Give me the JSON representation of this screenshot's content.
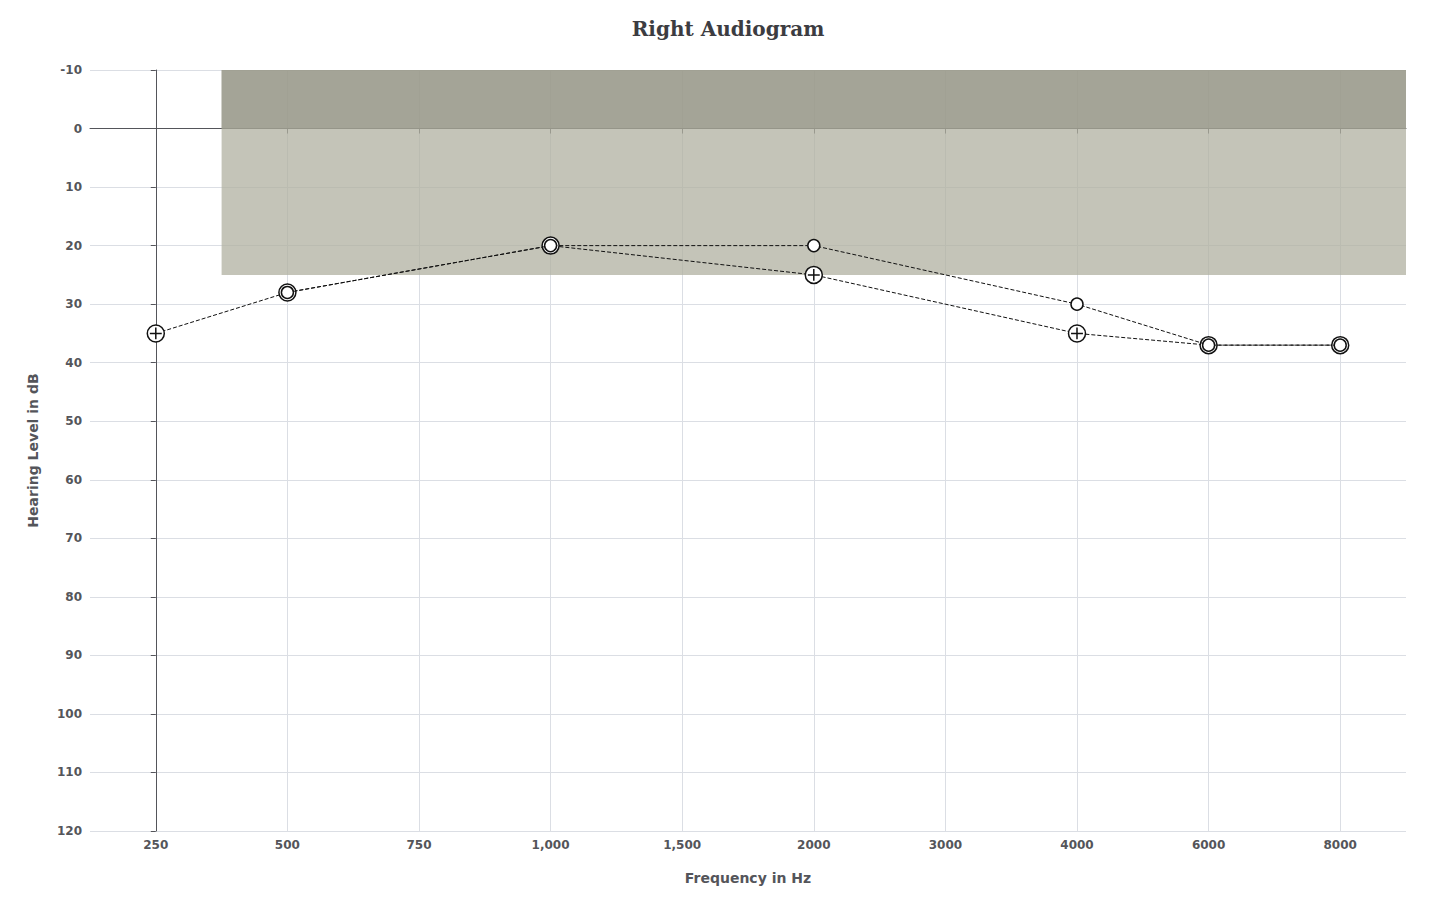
{
  "chart_data": {
    "type": "line",
    "title": "Right Audiogram",
    "xlabel": "Frequency in Hz",
    "ylabel": "Hearing Level in dB",
    "categories": [
      "250",
      "500",
      "750",
      "1,000",
      "1,500",
      "2000",
      "3000",
      "4000",
      "6000",
      "8000"
    ],
    "ylim": [
      120,
      -10
    ],
    "yticks": [
      -10,
      0,
      10,
      20,
      30,
      40,
      50,
      60,
      70,
      80,
      90,
      100,
      110,
      120
    ],
    "grid": true,
    "series": [
      {
        "x": [
          "250",
          "500",
          "1,000",
          "2000",
          "4000",
          "6000",
          "8000"
        ],
        "values": [
          35,
          28,
          20,
          25,
          35,
          37,
          37
        ],
        "color": "#111111",
        "marker": "circle-cross",
        "line_style": "dashed"
      },
      {
        "x": [
          "500",
          "1,000",
          "2000",
          "4000",
          "6000",
          "8000"
        ],
        "values": [
          28,
          20,
          20,
          30,
          37,
          37
        ],
        "color": "#111111",
        "marker": "circle",
        "line_style": "dashed"
      }
    ],
    "shaded_regions": [
      {
        "x": [
          "500",
          "8000"
        ],
        "y": [
          -10,
          25
        ],
        "color": "#b0b0a0"
      },
      {
        "x": [
          "500",
          "8000"
        ],
        "y": [
          -10,
          0
        ],
        "color": "#909080"
      }
    ]
  }
}
